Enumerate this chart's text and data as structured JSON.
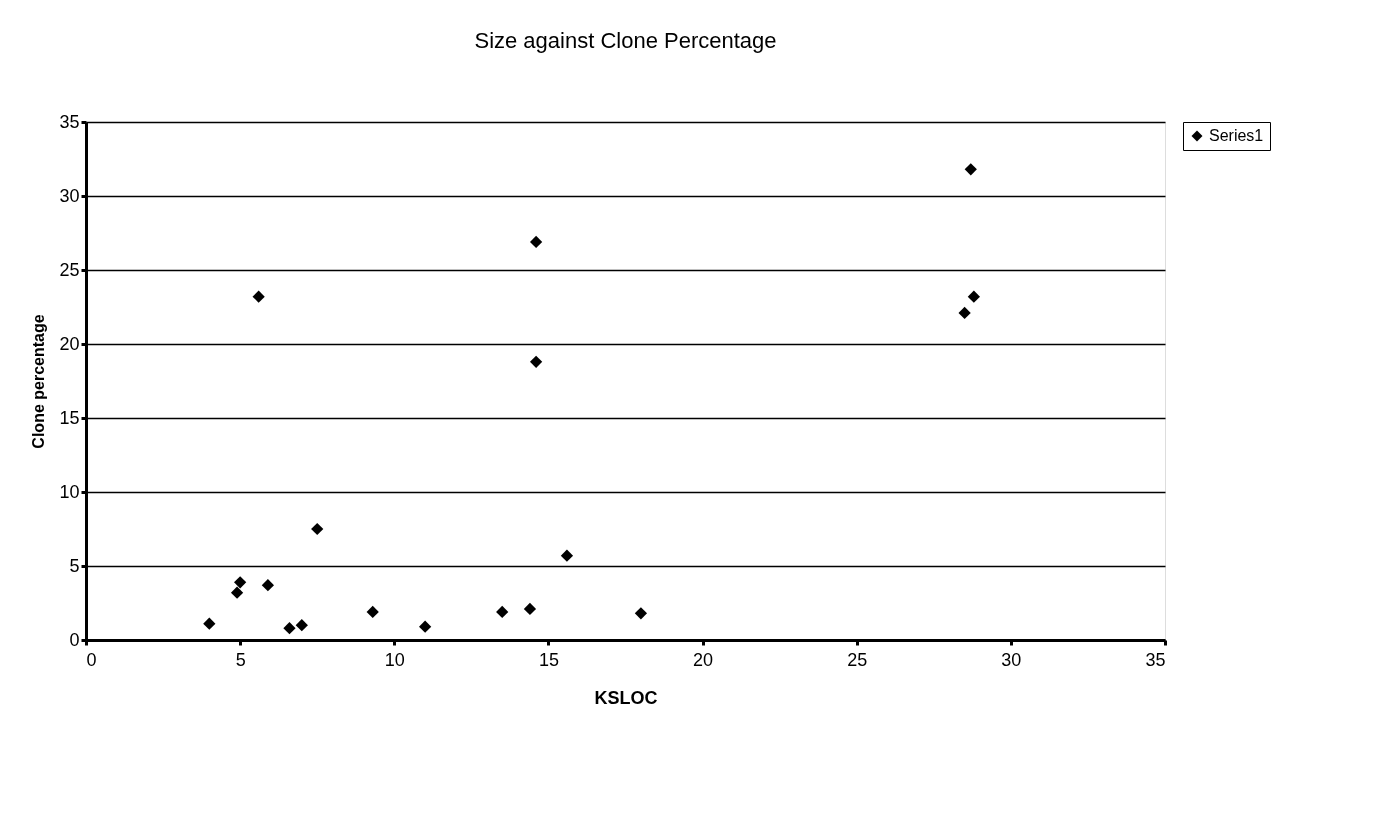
{
  "chart_data": {
    "type": "scatter",
    "title": "Size against Clone Percentage",
    "xlabel": "KSLOC",
    "ylabel": "Clone percentage",
    "x": [
      4.0,
      4.9,
      5.0,
      5.6,
      5.9,
      6.6,
      7.0,
      7.5,
      9.3,
      11.0,
      13.5,
      14.4,
      14.6,
      14.6,
      15.6,
      18.0,
      28.5,
      28.8,
      28.7
    ],
    "series": [
      {
        "name": "Series1",
        "color": "#000000",
        "values": [
          1.1,
          3.2,
          3.9,
          23.2,
          3.7,
          0.8,
          1.0,
          7.5,
          1.9,
          0.9,
          1.9,
          2.1,
          26.9,
          18.8,
          5.7,
          1.8,
          22.1,
          23.2,
          31.8
        ]
      }
    ],
    "xlim": [
      0,
      35
    ],
    "xticks": [
      0,
      5,
      10,
      15,
      20,
      25,
      30,
      35
    ],
    "ylim": [
      0,
      35
    ],
    "yticks": [
      0,
      5,
      10,
      15,
      20,
      25,
      30,
      35
    ],
    "grid": "y",
    "legend": "right",
    "marker": "diamond"
  }
}
